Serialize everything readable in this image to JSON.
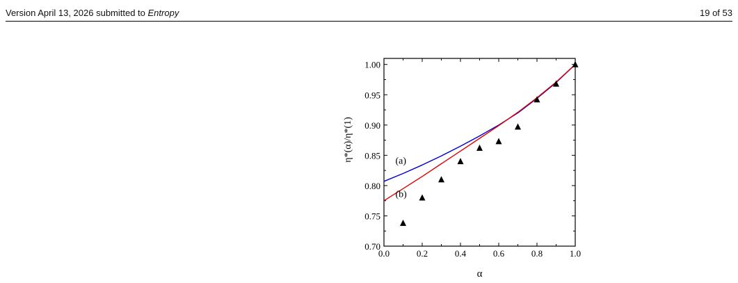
{
  "header": {
    "left_prefix": "Version April 13, 2026 submitted to ",
    "journal": "Entropy",
    "page": "19 of 53"
  },
  "chart_data": {
    "type": "scatter",
    "xlabel": "α",
    "ylabel": "η*(α)/η*(1)",
    "xlim": [
      0.0,
      1.0
    ],
    "ylim": [
      0.7,
      1.01
    ],
    "x_ticks": [
      "0.0",
      "0.2",
      "0.4",
      "0.6",
      "0.8",
      "1.0"
    ],
    "y_ticks": [
      "0.70",
      "0.75",
      "0.80",
      "0.85",
      "0.90",
      "0.95",
      "1.00"
    ],
    "series": [
      {
        "label": "(a)",
        "kind": "line",
        "color": "#0000cc",
        "x": [
          0.0,
          0.1,
          0.2,
          0.3,
          0.4,
          0.5,
          0.6,
          0.7,
          0.8,
          0.9,
          1.0
        ],
        "y": [
          0.807,
          0.82,
          0.834,
          0.849,
          0.865,
          0.882,
          0.9,
          0.92,
          0.944,
          0.97,
          1.0
        ]
      },
      {
        "label": "(b)",
        "kind": "line",
        "color": "#dd0000",
        "x": [
          0.0,
          0.1,
          0.2,
          0.3,
          0.4,
          0.5,
          0.6,
          0.7,
          0.8,
          0.9,
          1.0
        ],
        "y": [
          0.775,
          0.795,
          0.815,
          0.836,
          0.857,
          0.878,
          0.899,
          0.921,
          0.945,
          0.971,
          1.0
        ]
      },
      {
        "kind": "markers",
        "marker": "triangle",
        "color": "#000000",
        "x": [
          0.1,
          0.2,
          0.3,
          0.4,
          0.5,
          0.6,
          0.7,
          0.8,
          0.9,
          1.0
        ],
        "y": [
          0.738,
          0.78,
          0.81,
          0.84,
          0.862,
          0.873,
          0.897,
          0.942,
          0.968,
          1.0
        ]
      }
    ],
    "grid": false
  }
}
